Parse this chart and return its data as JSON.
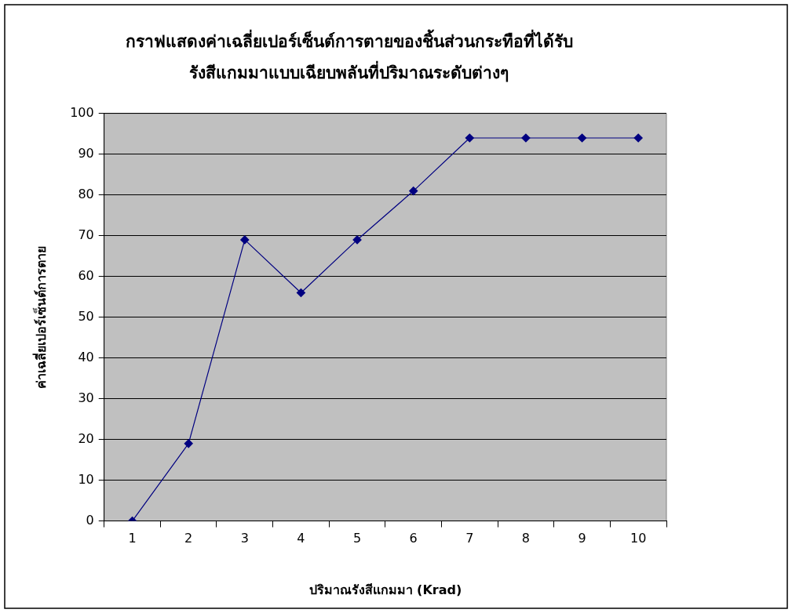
{
  "chart_data": {
    "type": "line",
    "title": "กราฟแสดงค่าเฉลี่ยเปอร์เซ็นต์การตายของชิ้นส่วนกระทือที่ได้รับ\nรังสีแกมมาแบบเฉียบพลันที่ปริมาณระดับต่างๆ",
    "xlabel": "ปริมาณรังสีแกมมา (Krad)",
    "ylabel": "ค่าเฉลี่ยเปอร์เซ็นต์การตาย",
    "categories": [
      "1",
      "2",
      "3",
      "4",
      "5",
      "6",
      "7",
      "8",
      "9",
      "10"
    ],
    "series": [
      {
        "color": "#000080",
        "values": [
          0,
          19,
          69,
          56,
          69,
          81,
          94,
          94,
          94,
          94
        ]
      }
    ],
    "ylim": [
      0,
      100
    ],
    "yticks": [
      0,
      10,
      20,
      30,
      40,
      50,
      60,
      70,
      80,
      90,
      100
    ],
    "grid": "y",
    "legend": false,
    "marker": "diamond",
    "line_style": "solid"
  }
}
